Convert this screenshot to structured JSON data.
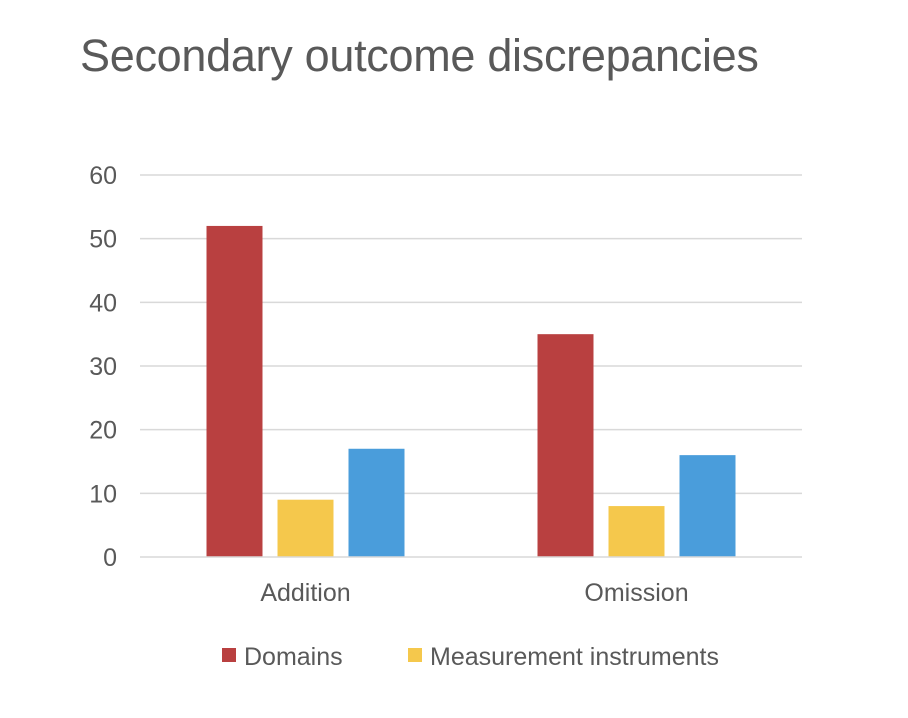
{
  "chart_data": {
    "type": "bar",
    "title": "Secondary outcome discrepancies",
    "xlabel": "",
    "ylabel": "",
    "categories": [
      "Addition",
      "Omission"
    ],
    "series": [
      {
        "name": "Domains",
        "values": [
          52,
          35
        ],
        "color": "#b94040"
      },
      {
        "name": "Measurement instruments",
        "values": [
          9,
          8
        ],
        "color": "#f5c84c"
      },
      {
        "name": "",
        "values": [
          17,
          16
        ],
        "color": "#4a9ddb"
      }
    ],
    "ylim": [
      0,
      60
    ],
    "yticks": [
      0,
      10,
      20,
      30,
      40,
      50,
      60
    ],
    "grid": true,
    "legend_position": "bottom"
  }
}
